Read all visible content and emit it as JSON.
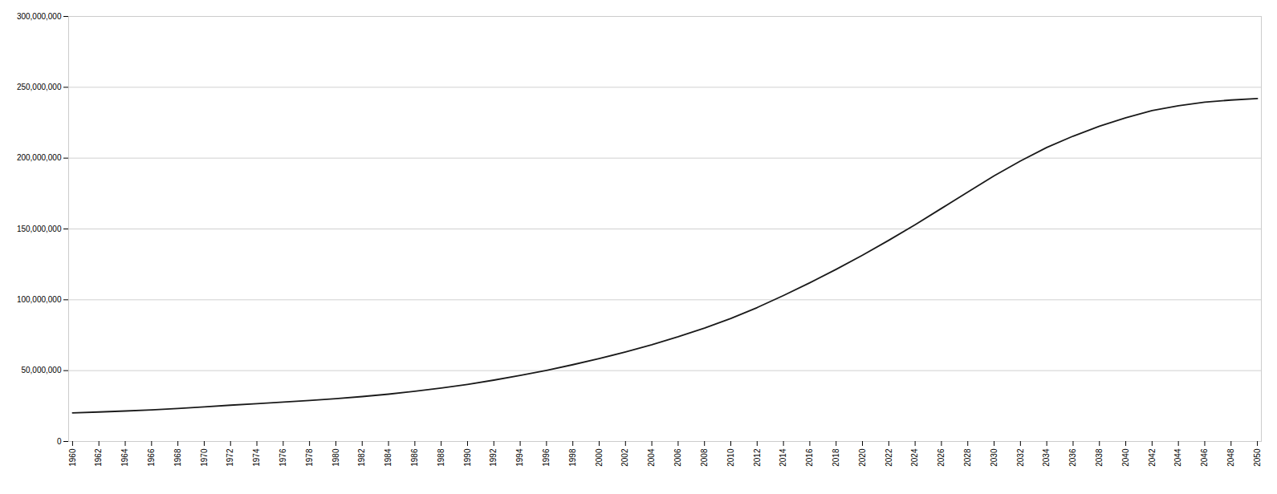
{
  "chart_data": {
    "type": "line",
    "x": [
      1960,
      1962,
      1964,
      1966,
      1968,
      1970,
      1972,
      1974,
      1976,
      1978,
      1980,
      1982,
      1984,
      1986,
      1988,
      1990,
      1992,
      1994,
      1996,
      1998,
      2000,
      2002,
      2004,
      2006,
      2008,
      2010,
      2012,
      2014,
      2016,
      2018,
      2020,
      2022,
      2024,
      2026,
      2028,
      2030,
      2032,
      2034,
      2036,
      2038,
      2040,
      2042,
      2044,
      2046,
      2048,
      2050
    ],
    "values": [
      20200000,
      20800000,
      21500000,
      22300000,
      23300000,
      24400000,
      25600000,
      26700000,
      27800000,
      28900000,
      30200000,
      31700000,
      33400000,
      35400000,
      37700000,
      40300000,
      43300000,
      46600000,
      50200000,
      54200000,
      58500000,
      63200000,
      68300000,
      73900000,
      80000000,
      86800000,
      94500000,
      103000000,
      112000000,
      121500000,
      131500000,
      142000000,
      153000000,
      164500000,
      176000000,
      187500000,
      198000000,
      207500000,
      215500000,
      222500000,
      228500000,
      233500000,
      237000000,
      239500000,
      241000000,
      242000000
    ],
    "color": "#1a1a1a",
    "xlim": [
      1959.7,
      2050.3
    ],
    "xticks": [
      1960,
      1962,
      1964,
      1966,
      1968,
      1970,
      1972,
      1974,
      1976,
      1978,
      1980,
      1982,
      1984,
      1986,
      1988,
      1990,
      1992,
      1994,
      1996,
      1998,
      2000,
      2002,
      2004,
      2006,
      2008,
      2010,
      2012,
      2014,
      2016,
      2018,
      2020,
      2022,
      2024,
      2026,
      2028,
      2030,
      2032,
      2034,
      2036,
      2038,
      2040,
      2042,
      2044,
      2046,
      2048,
      2050
    ],
    "ylim": [
      0,
      300000000
    ],
    "yticks": [
      0,
      {
        "value": 50000000,
        "label": "50,000,000"
      },
      {
        "value": 100000000,
        "label": "100,000,000"
      },
      {
        "value": 150000000,
        "label": "150,000,000"
      },
      {
        "value": 200000000,
        "label": "200,000,000"
      },
      {
        "value": 250000000,
        "label": "250,000,000"
      },
      {
        "value": 300000000,
        "label": "300,000,000"
      }
    ],
    "grid": true
  }
}
